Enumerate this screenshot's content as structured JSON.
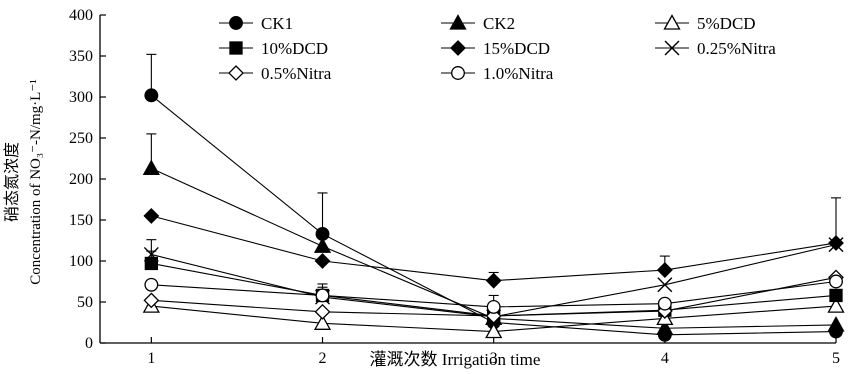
{
  "chart_data": {
    "type": "line",
    "xlabel": "灌溉次数 Irrigation time",
    "ylabel_cn": "硝态氮浓度",
    "ylabel_en": "Concentration of NO₃⁻-N/mg·L⁻¹",
    "x": [
      1,
      2,
      3,
      4,
      5
    ],
    "x_ticks": [
      "1",
      "2",
      "3",
      "4",
      "5"
    ],
    "xlim": [
      0.7,
      5.0
    ],
    "ylim": [
      0,
      400
    ],
    "y_ticks": [
      "0",
      "50",
      "100",
      "150",
      "200",
      "250",
      "300",
      "350",
      "400"
    ],
    "grid": false,
    "legend_position": "top",
    "series": [
      {
        "name": "CK1",
        "marker": "filled-circle",
        "values": [
          302,
          133,
          25,
          10,
          14
        ],
        "err": [
          50,
          50,
          0,
          0,
          0
        ]
      },
      {
        "name": "CK2",
        "marker": "filled-triangle",
        "values": [
          213,
          118,
          30,
          18,
          22
        ],
        "err": [
          42,
          0,
          0,
          0,
          0
        ]
      },
      {
        "name": "5%DCD",
        "marker": "open-triangle",
        "values": [
          45,
          24,
          14,
          30,
          45
        ],
        "err": [
          0,
          0,
          0,
          0,
          0
        ]
      },
      {
        "name": "10%DCD",
        "marker": "filled-square",
        "values": [
          97,
          58,
          33,
          40,
          58
        ],
        "err": [
          15,
          0,
          0,
          0,
          0
        ]
      },
      {
        "name": "15%DCD",
        "marker": "filled-diamond",
        "values": [
          155,
          100,
          76,
          89,
          122
        ],
        "err": [
          0,
          0,
          10,
          17,
          0
        ]
      },
      {
        "name": "0.25%Nitra",
        "marker": "x-mark",
        "values": [
          108,
          56,
          32,
          71,
          120
        ],
        "err": [
          18,
          12,
          0,
          0,
          57
        ]
      },
      {
        "name": "0.5%Nitra",
        "marker": "open-diamond",
        "values": [
          52,
          38,
          33,
          39,
          80
        ],
        "err": [
          0,
          0,
          0,
          0,
          0
        ]
      },
      {
        "name": "1.0%Nitra",
        "marker": "open-circle",
        "values": [
          71,
          58,
          44,
          48,
          75
        ],
        "err": [
          0,
          14,
          14,
          0,
          0
        ]
      }
    ]
  }
}
